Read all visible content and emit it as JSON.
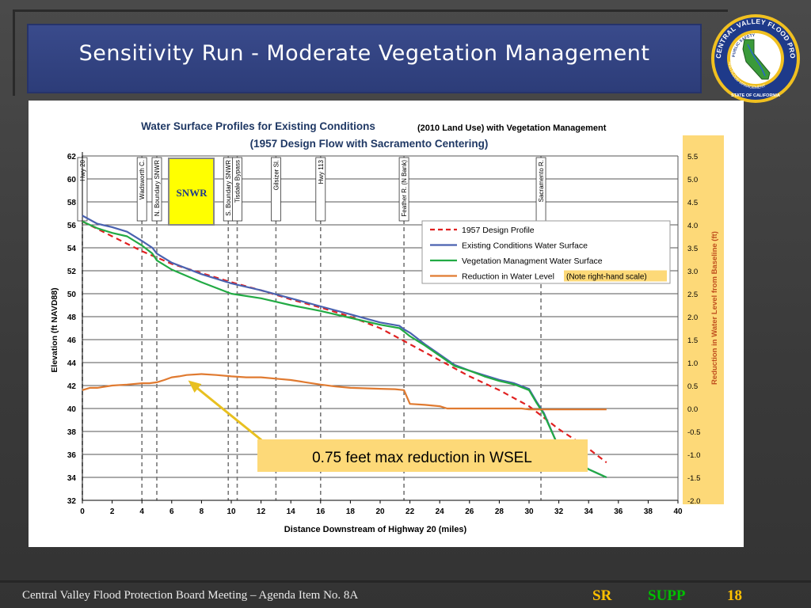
{
  "slide": {
    "title": "Sensitivity Run - Moderate Vegetation Management",
    "footer": "Central Valley Flood Protection Board Meeting – Agenda Item No. 8A",
    "tag_sr": "SR",
    "tag_supp": "SUPP",
    "page_number": "18"
  },
  "seal": {
    "outer_text": "CENTRAL VALLEY FLOOD PROTECTION BOARD",
    "inner_text": "PUBLIC SAFETY",
    "bottom_text": "AND FLOOD MANAGEMENT",
    "state_text": "STATE OF CALIFORNIA",
    "colors": {
      "ring": "#1e3a8a",
      "inner": "#ffffff",
      "land": "#3a9a3a",
      "gold": "#f0c020"
    }
  },
  "chart_data": {
    "type": "line",
    "title_line1": "Water Surface Profiles for Existing Conditions",
    "title_line2": "(1957 Design Flow with Sacramento Centering)",
    "title_insert": "(2010 Land Use) with Vegetation Management",
    "xlabel": "Distance Downstream of Highway 20 (miles)",
    "ylabel": "Elevation (ft NAVD88)",
    "y2label": "Reduction in Water Level from Baseline (ft)",
    "xlim": [
      0,
      40
    ],
    "ylim": [
      32,
      62
    ],
    "y2lim": [
      -2.0,
      5.5
    ],
    "xticks": [
      "0",
      "2",
      "4",
      "6",
      "8",
      "10",
      "12",
      "14",
      "16",
      "18",
      "20",
      "22",
      "24",
      "26",
      "28",
      "30",
      "32",
      "34",
      "36",
      "38",
      "40"
    ],
    "yticks": [
      "32",
      "34",
      "36",
      "38",
      "40",
      "42",
      "44",
      "46",
      "48",
      "50",
      "52",
      "54",
      "56",
      "58",
      "60",
      "62"
    ],
    "y2ticks": [
      "-2.0",
      "-1.5",
      "-1.0",
      "-0.5",
      "0.0",
      "0.5",
      "1.0",
      "1.5",
      "2.0",
      "2.5",
      "3.0",
      "3.5",
      "4.0",
      "4.5",
      "5.0",
      "5.5"
    ],
    "grid": "horizontal",
    "legend_position": "center-right",
    "legend_note": "(Note right-hand scale)",
    "series": [
      {
        "name": "1957 Design Profile",
        "color": "#e02020",
        "dash": true,
        "axis": "left",
        "x": [
          0,
          2,
          4,
          6,
          8,
          10,
          12,
          14,
          16,
          18,
          20,
          22,
          24,
          26,
          28,
          30,
          32,
          34,
          35.2
        ],
        "y": [
          56.3,
          55.0,
          53.7,
          52.6,
          51.8,
          51.0,
          50.3,
          49.5,
          48.8,
          48.0,
          47.0,
          45.6,
          44.2,
          42.8,
          41.6,
          40.2,
          38.2,
          36.5,
          35.3
        ]
      },
      {
        "name": "Existing Conditions Water Surface",
        "color": "#4a62b0",
        "dash": false,
        "axis": "left",
        "x": [
          0,
          1,
          2,
          3,
          4,
          4.7,
          5,
          6,
          8,
          10,
          12,
          14,
          16,
          18,
          20,
          21.3,
          21.6,
          22,
          23,
          24,
          25,
          26,
          27,
          28,
          29,
          30,
          30.5,
          31,
          32,
          33,
          34,
          35.2
        ],
        "y": [
          56.8,
          56.1,
          55.8,
          55.4,
          54.6,
          54.0,
          53.5,
          52.7,
          51.7,
          50.9,
          50.3,
          49.6,
          48.9,
          48.2,
          47.5,
          47.2,
          46.9,
          46.6,
          45.6,
          44.7,
          43.8,
          43.3,
          42.9,
          42.5,
          42.2,
          41.7,
          40.6,
          39.6,
          36.6,
          35.6,
          34.7,
          34.0
        ]
      },
      {
        "name": "Vegetation Managment Water Surface",
        "color": "#22aa44",
        "dash": false,
        "axis": "left",
        "x": [
          0,
          1,
          2,
          3,
          4,
          4.7,
          5,
          6,
          8,
          10,
          12,
          14,
          16,
          18,
          20,
          21.3,
          21.6,
          22,
          23,
          24,
          25,
          26,
          27,
          28,
          29,
          30,
          30.5,
          31,
          32,
          33,
          34,
          35.2
        ],
        "y": [
          56.3,
          55.7,
          55.3,
          55.0,
          54.2,
          53.5,
          52.9,
          52.1,
          51.0,
          50.0,
          49.6,
          49.0,
          48.5,
          47.9,
          47.3,
          47.0,
          46.7,
          46.3,
          45.5,
          44.6,
          43.7,
          43.3,
          42.8,
          42.4,
          42.1,
          41.6,
          40.5,
          39.5,
          36.6,
          35.6,
          34.7,
          34.0
        ]
      },
      {
        "name": "Reduction in Water Level",
        "color": "#e07a30",
        "dash": false,
        "axis": "right",
        "x": [
          0,
          0.5,
          1,
          2,
          3,
          4,
          4.5,
          5,
          5.5,
          6,
          6.5,
          7,
          8,
          9,
          10,
          11,
          12,
          13,
          14,
          15,
          16,
          17,
          18,
          19,
          20,
          21,
          21.6,
          22,
          23,
          24,
          24.5,
          25,
          26,
          27,
          28,
          29,
          29.5,
          30,
          31,
          32,
          33,
          34,
          35.2
        ],
        "y": [
          0.4,
          0.45,
          0.45,
          0.5,
          0.52,
          0.55,
          0.55,
          0.57,
          0.62,
          0.68,
          0.7,
          0.73,
          0.75,
          0.73,
          0.7,
          0.68,
          0.68,
          0.65,
          0.62,
          0.57,
          0.52,
          0.48,
          0.45,
          0.44,
          0.43,
          0.42,
          0.4,
          0.1,
          0.08,
          0.05,
          0.0,
          0.0,
          0.0,
          0.0,
          0.0,
          0.0,
          0.0,
          -0.02,
          -0.02,
          -0.02,
          -0.02,
          -0.02,
          -0.02
        ]
      }
    ],
    "locations": [
      {
        "label": "Hwy 20",
        "x": 0.0
      },
      {
        "label": "Wadsworth C.",
        "x": 4.0
      },
      {
        "label": "N. Boundary SNWR",
        "x": 5.0
      },
      {
        "label": "S. Boundary SNWR",
        "x": 9.8
      },
      {
        "label": "Tisdale Bypass",
        "x": 10.4
      },
      {
        "label": "Gilsizer Sl.",
        "x": 13.0
      },
      {
        "label": "Hwy 113",
        "x": 16.0
      },
      {
        "label": "Feather R. (N Bank)",
        "x": 21.6
      },
      {
        "label": "Sacramento R.",
        "x": 30.8
      }
    ],
    "snwr_label": "SNWR",
    "annotation": "0.75 feet max reduction in WSEL",
    "annotation_target": {
      "x": 7.0,
      "y2": 0.75
    }
  }
}
